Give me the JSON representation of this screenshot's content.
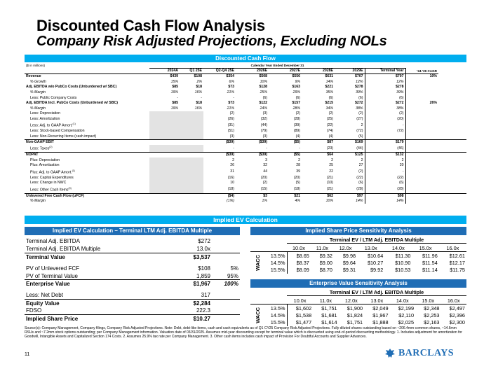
{
  "title": "Discounted Cash Flow Analysis",
  "subtitle": "Company Risk Adjusted Projections, Excluding NOLs",
  "dcf": {
    "header": "Discounted Cash Flow",
    "units": "($ in millions)",
    "period_label": "Calendar Year Ended December 31",
    "columns": [
      "2024A",
      "Q1 25E",
      "Q2-Q4 25E",
      "2026E",
      "2027E",
      "2028E",
      "2029E",
      "Terminal Year",
      "'24-'29 CAGR"
    ],
    "rows": [
      {
        "label": "Revenue",
        "style": "bold",
        "v": [
          "$439",
          "$108",
          "$354",
          "$508",
          "$556",
          "$631",
          "$707",
          "$707",
          "10%"
        ]
      },
      {
        "label": "% Growth",
        "style": "ind-italic",
        "v": [
          "15%",
          "2%",
          "6%",
          "10%",
          "9%",
          "14%",
          "12%",
          "12%",
          ""
        ]
      },
      {
        "label": "Adj. EBITDA w/o PubCo Costs (Unburdened w/ SBC)",
        "style": "bold",
        "v": [
          "$85",
          "$18",
          "$73",
          "$128",
          "$163",
          "$221",
          "$278",
          "$278",
          ""
        ]
      },
      {
        "label": "% Margin",
        "style": "ind-italic",
        "v": [
          "19%",
          "16%",
          "21%",
          "25%",
          "29%",
          "35%",
          "39%",
          "39%",
          ""
        ]
      },
      {
        "label": "Less: Public Company Costs",
        "style": "ind",
        "v": [
          "-",
          "-",
          "-",
          "(6)",
          "(6)",
          "(6)",
          "(6)",
          "(6)",
          ""
        ]
      },
      {
        "label": "Adj. EBITDA Incl. PubCo Costs (Unburdened w/ SBC)",
        "style": "bold",
        "v": [
          "$85",
          "$18",
          "$73",
          "$122",
          "$157",
          "$215",
          "$272",
          "$272",
          "26%"
        ]
      },
      {
        "label": "% Margin",
        "style": "ind-italic",
        "v": [
          "19%",
          "16%",
          "21%",
          "24%",
          "28%",
          "34%",
          "38%",
          "38%",
          ""
        ]
      },
      {
        "label": "Less: Depreciation",
        "style": "ind",
        "v": [
          "",
          "",
          "(2)",
          "(3)",
          "(2)",
          "(2)",
          "(2)",
          "(2)",
          ""
        ]
      },
      {
        "label": "Less: Amortization",
        "style": "ind",
        "v": [
          "",
          "",
          "(26)",
          "(32)",
          "(28)",
          "(25)",
          "(27)",
          "(20)",
          ""
        ]
      },
      {
        "label": "Less: Adj. to GAAP Amort.",
        "sup": "(1)",
        "style": "ind",
        "v": [
          "",
          "",
          "(31)",
          "(44)",
          "(39)",
          "(22)",
          "2",
          "-",
          ""
        ]
      },
      {
        "label": "Less: Stock-based Compensation",
        "style": "ind",
        "v": [
          "",
          "",
          "(51)",
          "(79)",
          "(89)",
          "(74)",
          "(72)",
          "(72)",
          ""
        ]
      },
      {
        "label": "Less: Non-Recurring Items (cash impact)",
        "style": "ind",
        "v": [
          "",
          "",
          "(3)",
          "(3)",
          "(4)",
          "(4)",
          "(5)",
          "",
          ""
        ]
      },
      {
        "label": "Non-GAAP EBIT",
        "style": "bold topline",
        "v": [
          "",
          "",
          "($39)",
          "($39)",
          "($5)",
          "$87",
          "$169",
          "$179",
          ""
        ]
      },
      {
        "label": "Less: Taxes",
        "sup": "(2)",
        "style": "ind",
        "v": [
          "",
          "",
          "-",
          "-",
          "-",
          "(23)",
          "(44)",
          "(46)",
          ""
        ]
      },
      {
        "label": "NOPAT",
        "style": "bold topline",
        "v": [
          "",
          "",
          "($39)",
          "($39)",
          "($5)",
          "$64",
          "$125",
          "$132",
          ""
        ]
      },
      {
        "label": "Plus: Depreciation",
        "style": "ind",
        "v": [
          "",
          "",
          "2",
          "3",
          "2",
          "2",
          "2",
          "2",
          ""
        ]
      },
      {
        "label": "Plus: Amortization",
        "style": "ind",
        "v": [
          "",
          "",
          "26",
          "32",
          "28",
          "25",
          "27",
          "20",
          ""
        ]
      },
      {
        "label": "Plus: Adj. to GAAP Amort.",
        "sup": "(1)",
        "style": "ind",
        "v": [
          "",
          "",
          "31",
          "44",
          "39",
          "22",
          "(2)",
          "-",
          ""
        ]
      },
      {
        "label": "Less: Capital Expenditures",
        "style": "ind",
        "v": [
          "",
          "",
          "(16)",
          "(20)",
          "(20)",
          "(21)",
          "(22)",
          "(22)",
          ""
        ]
      },
      {
        "label": "Less: Change in NWC",
        "style": "ind",
        "v": [
          "",
          "",
          "10",
          "(2)",
          "(5)",
          "(10)",
          "(6)",
          "(6)",
          ""
        ]
      },
      {
        "label": "Less: Other Cash Items",
        "sup": "(3)",
        "style": "ind",
        "v": [
          "",
          "",
          "(18)",
          "(15)",
          "(18)",
          "(21)",
          "(28)",
          "(28)",
          ""
        ]
      },
      {
        "label": "Unlevered Free Cash Flow (uFCF)",
        "style": "bold topline",
        "v": [
          "",
          "",
          "($4)",
          "$3",
          "$21",
          "$62",
          "$97",
          "$98",
          ""
        ]
      },
      {
        "label": "% Margin",
        "style": "ind-italic",
        "v": [
          "",
          "",
          "(1%)",
          "1%",
          "4%",
          "10%",
          "14%",
          "14%",
          ""
        ]
      }
    ]
  },
  "implied_ev": {
    "header": "Implied EV Calculation",
    "left_title": "Implied EV Calculation – Terminal LTM Adj. EBITDA Multiple",
    "rows": [
      {
        "label": "Terminal Adj. EBITDA",
        "value": "$272",
        "pct": "",
        "style": ""
      },
      {
        "label": "Terminal Adj. EBITDA Multiple",
        "value": "13.0x",
        "pct": "",
        "style": ""
      },
      {
        "label": "Terminal Value",
        "value": "$3,537",
        "pct": "",
        "style": "bold line"
      },
      {
        "label": "",
        "value": "",
        "pct": "",
        "style": "gap"
      },
      {
        "label": "PV of Unlevered FCF",
        "value": "$108",
        "pct": "5%",
        "style": ""
      },
      {
        "label": "PV of Terminal Value",
        "value": "1,859",
        "pct": "95%",
        "style": ""
      },
      {
        "label": "Enterprise Value",
        "value": "$1,967",
        "pct": "100%",
        "style": "bold line italicpct"
      },
      {
        "label": "",
        "value": "",
        "pct": "",
        "style": "gap"
      },
      {
        "label": "Less: Net Debt",
        "value": "317",
        "pct": "",
        "style": ""
      },
      {
        "label": "Equity Value",
        "value": "$2,284",
        "pct": "",
        "style": "bold line"
      },
      {
        "label": "FDSO",
        "value": "222.3",
        "pct": "",
        "style": ""
      },
      {
        "label": "Implied Share Price",
        "value": "$10.27",
        "pct": "",
        "style": "bold line"
      }
    ]
  },
  "share_sensitivity": {
    "title": "Implied Share Price Sensitivity Analysis",
    "axis_title": "Terminal EV / LTM Adj. EBITDA Multiple",
    "row_axis": "WACC",
    "cols": [
      "10.0x",
      "11.0x",
      "12.0x",
      "13.0x",
      "14.0x",
      "15.0x",
      "16.0x"
    ],
    "rows": [
      {
        "wacc": "13.5%",
        "v": [
          "$8.65",
          "$9.32",
          "$9.98",
          "$10.64",
          "$11.30",
          "$11.96",
          "$12.61"
        ]
      },
      {
        "wacc": "14.5%",
        "v": [
          "$8.37",
          "$9.00",
          "$9.64",
          "$10.27",
          "$10.90",
          "$11.54",
          "$12.17"
        ]
      },
      {
        "wacc": "15.5%",
        "v": [
          "$8.09",
          "$8.70",
          "$9.31",
          "$9.92",
          "$10.53",
          "$11.14",
          "$11.75"
        ]
      }
    ]
  },
  "ev_sensitivity": {
    "title": "Enterprise Value Sensitivity Analysis",
    "axis_title": "Terminal EV / LTM Adj. EBITDA Multiple",
    "row_axis": "WACC",
    "cols": [
      "10.0x",
      "11.0x",
      "12.0x",
      "13.0x",
      "14.0x",
      "15.0x",
      "16.0x"
    ],
    "rows": [
      {
        "wacc": "13.5%",
        "v": [
          "$1,602",
          "$1,751",
          "$1,900",
          "$2,049",
          "$2,199",
          "$2,348",
          "$2,497"
        ]
      },
      {
        "wacc": "14.5%",
        "v": [
          "$1,538",
          "$1,681",
          "$1,824",
          "$1,967",
          "$2,110",
          "$2,253",
          "$2,396"
        ]
      },
      {
        "wacc": "15.5%",
        "v": [
          "$1,477",
          "$1,614",
          "$1,751",
          "$1,888",
          "$2,025",
          "$2,163",
          "$2,300"
        ]
      }
    ]
  },
  "source_note": "Source(s): Company Management, Company filings, Company Risk Adjusted Projections. Note: Debt, debt-like items, cash and cash equivalents as of Q1 CY25 Company Risk Adjusted Projections. Fully diluted shares outstanding based on ~206.4mm common shares, ~14.6mm RSUs and ~7.2mm stock options outstanding; per Company Management information. Valuation date of 03/31/2025. Assumes mid-year discounting except for terminal value which is discounted using end-of-period discounting methodology. 1. Includes adjustment for amortization for Goodwill, Intangible Assets and Capitalized Section 174 Costs. 2. Assumes 25.9% tax rate per Company Management. 3. Other cash items includes cash impact of Provision For Doubtful Accounts and Supplier Advances.",
  "page_number": "11",
  "brand": {
    "name": "BARCLAYS",
    "color": "#1f6db5",
    "header_color": "#00aeef",
    "icon": "eagle-icon"
  }
}
